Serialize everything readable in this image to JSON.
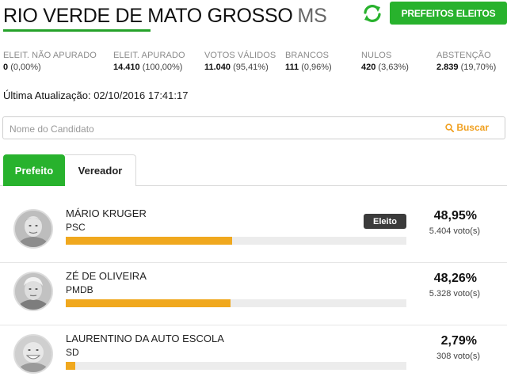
{
  "header": {
    "city": "RIO VERDE DE MATO GROSSO",
    "state": "MS",
    "button_label": "PREFEITOS ELEITOS",
    "refresh_icon": "refresh-icon"
  },
  "stats": [
    {
      "label": "ELEIT. NÃO APURADO",
      "number": "0",
      "percent": "(0,00%)"
    },
    {
      "label": "ELEIT. APURADO",
      "number": "14.410",
      "percent": "(100,00%)"
    },
    {
      "label": "VOTOS VÁLIDOS",
      "number": "11.040",
      "percent": "(95,41%)"
    },
    {
      "label": "BRANCOS",
      "number": "111",
      "percent": "(0,96%)"
    },
    {
      "label": "NULOS",
      "number": "420",
      "percent": "(3,63%)"
    },
    {
      "label": "ABSTENÇÃO",
      "number": "2.839",
      "percent": "(19,70%)"
    }
  ],
  "update": {
    "label": "Última Atualização:",
    "value": "02/10/2016 17:41:17"
  },
  "search": {
    "placeholder": "Nome do Candidato",
    "button_label": "Buscar"
  },
  "tabs": [
    {
      "label": "Prefeito",
      "active": true
    },
    {
      "label": "Vereador",
      "active": false
    }
  ],
  "candidates": [
    {
      "name": "MÁRIO KRUGER",
      "party": "PSC",
      "percent": "48,95%",
      "votes": "5.404 voto(s)",
      "share": 0.4895,
      "badge": "Eleito"
    },
    {
      "name": "ZÉ DE OLIVEIRA",
      "party": "PMDB",
      "percent": "48,26%",
      "votes": "5.328 voto(s)",
      "share": 0.4826,
      "badge": ""
    },
    {
      "name": "LAURENTINO DA AUTO ESCOLA",
      "party": "SD",
      "percent": "2,79%",
      "votes": "308 voto(s)",
      "share": 0.0279,
      "badge": ""
    }
  ],
  "colors": {
    "accent": "#28b22d",
    "bar": "#f0a81e",
    "search_button": "#f0a020",
    "badge": "#3b3b3b"
  }
}
